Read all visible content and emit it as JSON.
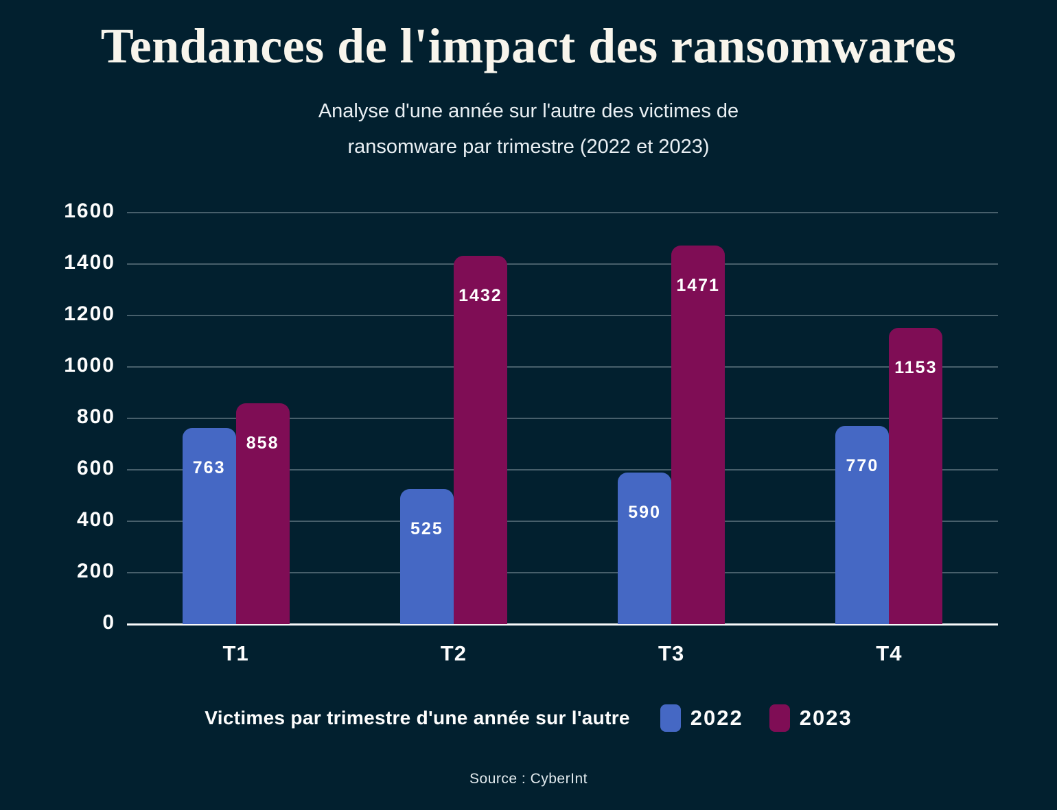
{
  "title": "Tendances de l'impact des ransomwares",
  "subtitle_line1": "Analyse d'une année sur l'autre des victimes de",
  "subtitle_line2": "ransomware par trimestre (2022 et 2023)",
  "source": "Source : CyberInt",
  "legend": {
    "label": "Victimes par trimestre d'une année sur l'autre"
  },
  "colors": {
    "background": "#02202F",
    "title_text": "#F8F5EC",
    "series_2022": "#4568C4",
    "series_2023": "#7F0D55",
    "axis_line": "#FAFBFC",
    "gridline": "rgba(233,243,250,0.30)"
  },
  "chart_data": {
    "type": "bar",
    "title": "Tendances de l'impact des ransomwares",
    "subtitle": "Analyse d'une année sur l'autre des victimes de ransomware par trimestre (2022 et 2023)",
    "categories": [
      "T1",
      "T2",
      "T3",
      "T4"
    ],
    "series": [
      {
        "name": "2022",
        "color": "#4568C4",
        "values": [
          763,
          525,
          590,
          770
        ]
      },
      {
        "name": "2023",
        "color": "#7F0D55",
        "values": [
          858,
          1432,
          1471,
          1153
        ]
      }
    ],
    "xlabel": "",
    "ylabel": "",
    "ylim": [
      0,
      1600
    ],
    "yticks": [
      0,
      200,
      400,
      600,
      800,
      1000,
      1200,
      1400,
      1600
    ],
    "grid": true,
    "legend_position": "bottom",
    "value_labels": "inside-top"
  }
}
